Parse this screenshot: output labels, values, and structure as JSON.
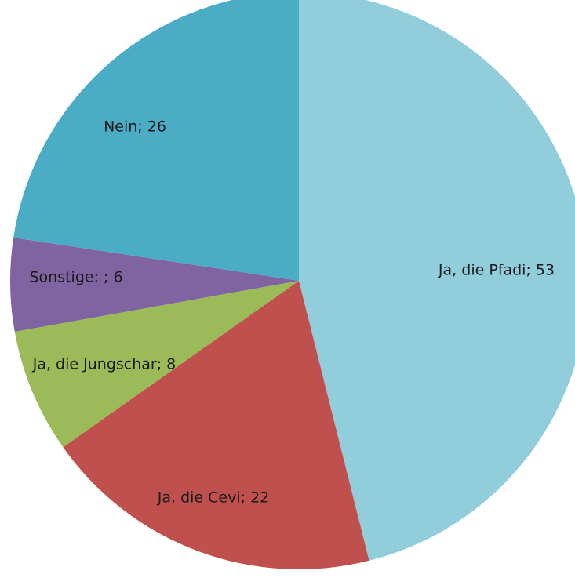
{
  "chart_data": {
    "type": "pie",
    "values": [
      53,
      22,
      8,
      6,
      26
    ],
    "value_labels": [
      "Ja, die Pfadi; 53",
      "Ja, die Cevi; 22",
      "Ja, die Jungschar; 8",
      "Sonstige: ; 6",
      "Nein; 26"
    ],
    "colors": [
      "#92cddc",
      "#c0504d",
      "#9bbb59",
      "#8064a2",
      "#4bacc6"
    ],
    "start_angle": 0,
    "direction": "clockwise"
  }
}
